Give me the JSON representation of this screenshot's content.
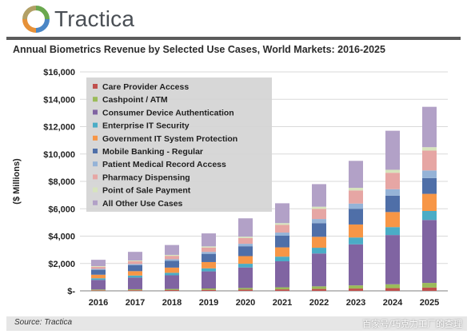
{
  "brand": {
    "name": "Tractica"
  },
  "footer": {
    "source": "Source: Tractica",
    "watermark": "百家号/巧克力工厂的查理"
  },
  "chart_data": {
    "type": "bar",
    "stacked": true,
    "title": "Annual Biometrics Revenue by Selected Use Cases, World Markets: 2016-2025",
    "xlabel": "",
    "ylabel": "($ Millions)",
    "ylim": [
      0,
      16000
    ],
    "yticks": [
      0,
      2000,
      4000,
      6000,
      8000,
      10000,
      12000,
      14000,
      16000
    ],
    "ytick_labels": [
      "$-",
      "$2,000",
      "$4,000",
      "$6,000",
      "$8,000",
      "$10,000",
      "$12,000",
      "$14,000",
      "$16,000"
    ],
    "grid": true,
    "legend_position": "top-left",
    "categories": [
      "2016",
      "2017",
      "2018",
      "2019",
      "2020",
      "2021",
      "2022",
      "2023",
      "2024",
      "2025"
    ],
    "series": [
      {
        "name": "Care Provider Access",
        "color": "#c0504d",
        "values": [
          40,
          50,
          60,
          75,
          90,
          110,
          140,
          170,
          200,
          240
        ]
      },
      {
        "name": "Cashpoint / ATM",
        "color": "#9bbb59",
        "values": [
          60,
          70,
          80,
          100,
          120,
          150,
          190,
          230,
          280,
          340
        ]
      },
      {
        "name": "Consumer Device Authentication",
        "color": "#8064a2",
        "values": [
          700,
          850,
          1000,
          1250,
          1500,
          1900,
          2400,
          3000,
          3600,
          4600
        ]
      },
      {
        "name": "Enterprise IT Security",
        "color": "#4bacc6",
        "values": [
          120,
          150,
          180,
          220,
          270,
          340,
          420,
          500,
          580,
          660
        ]
      },
      {
        "name": "Government IT System Protection",
        "color": "#f79646",
        "values": [
          260,
          320,
          380,
          460,
          560,
          680,
          800,
          950,
          1100,
          1250
        ]
      },
      {
        "name": "Mobile Banking - Regular",
        "color": "#4f6fa8",
        "values": [
          360,
          430,
          500,
          600,
          720,
          850,
          1000,
          1150,
          1200,
          1150
        ]
      },
      {
        "name": "Patient Medical Record Access",
        "color": "#95b3d7",
        "values": [
          70,
          90,
          110,
          140,
          180,
          230,
          300,
          380,
          470,
          560
        ]
      },
      {
        "name": "Pharmacy Dispensing",
        "color": "#e6a6a4",
        "values": [
          150,
          200,
          250,
          320,
          420,
          560,
          740,
          960,
          1200,
          1450
        ]
      },
      {
        "name": "Point of Sale Payment",
        "color": "#d7e4bd",
        "values": [
          50,
          60,
          70,
          85,
          100,
          130,
          160,
          190,
          220,
          250
        ]
      },
      {
        "name": "All Other Use Cases",
        "color": "#b2a1c7",
        "values": [
          460,
          630,
          720,
          950,
          1340,
          1450,
          1650,
          1970,
          2850,
          2950
        ]
      }
    ]
  }
}
